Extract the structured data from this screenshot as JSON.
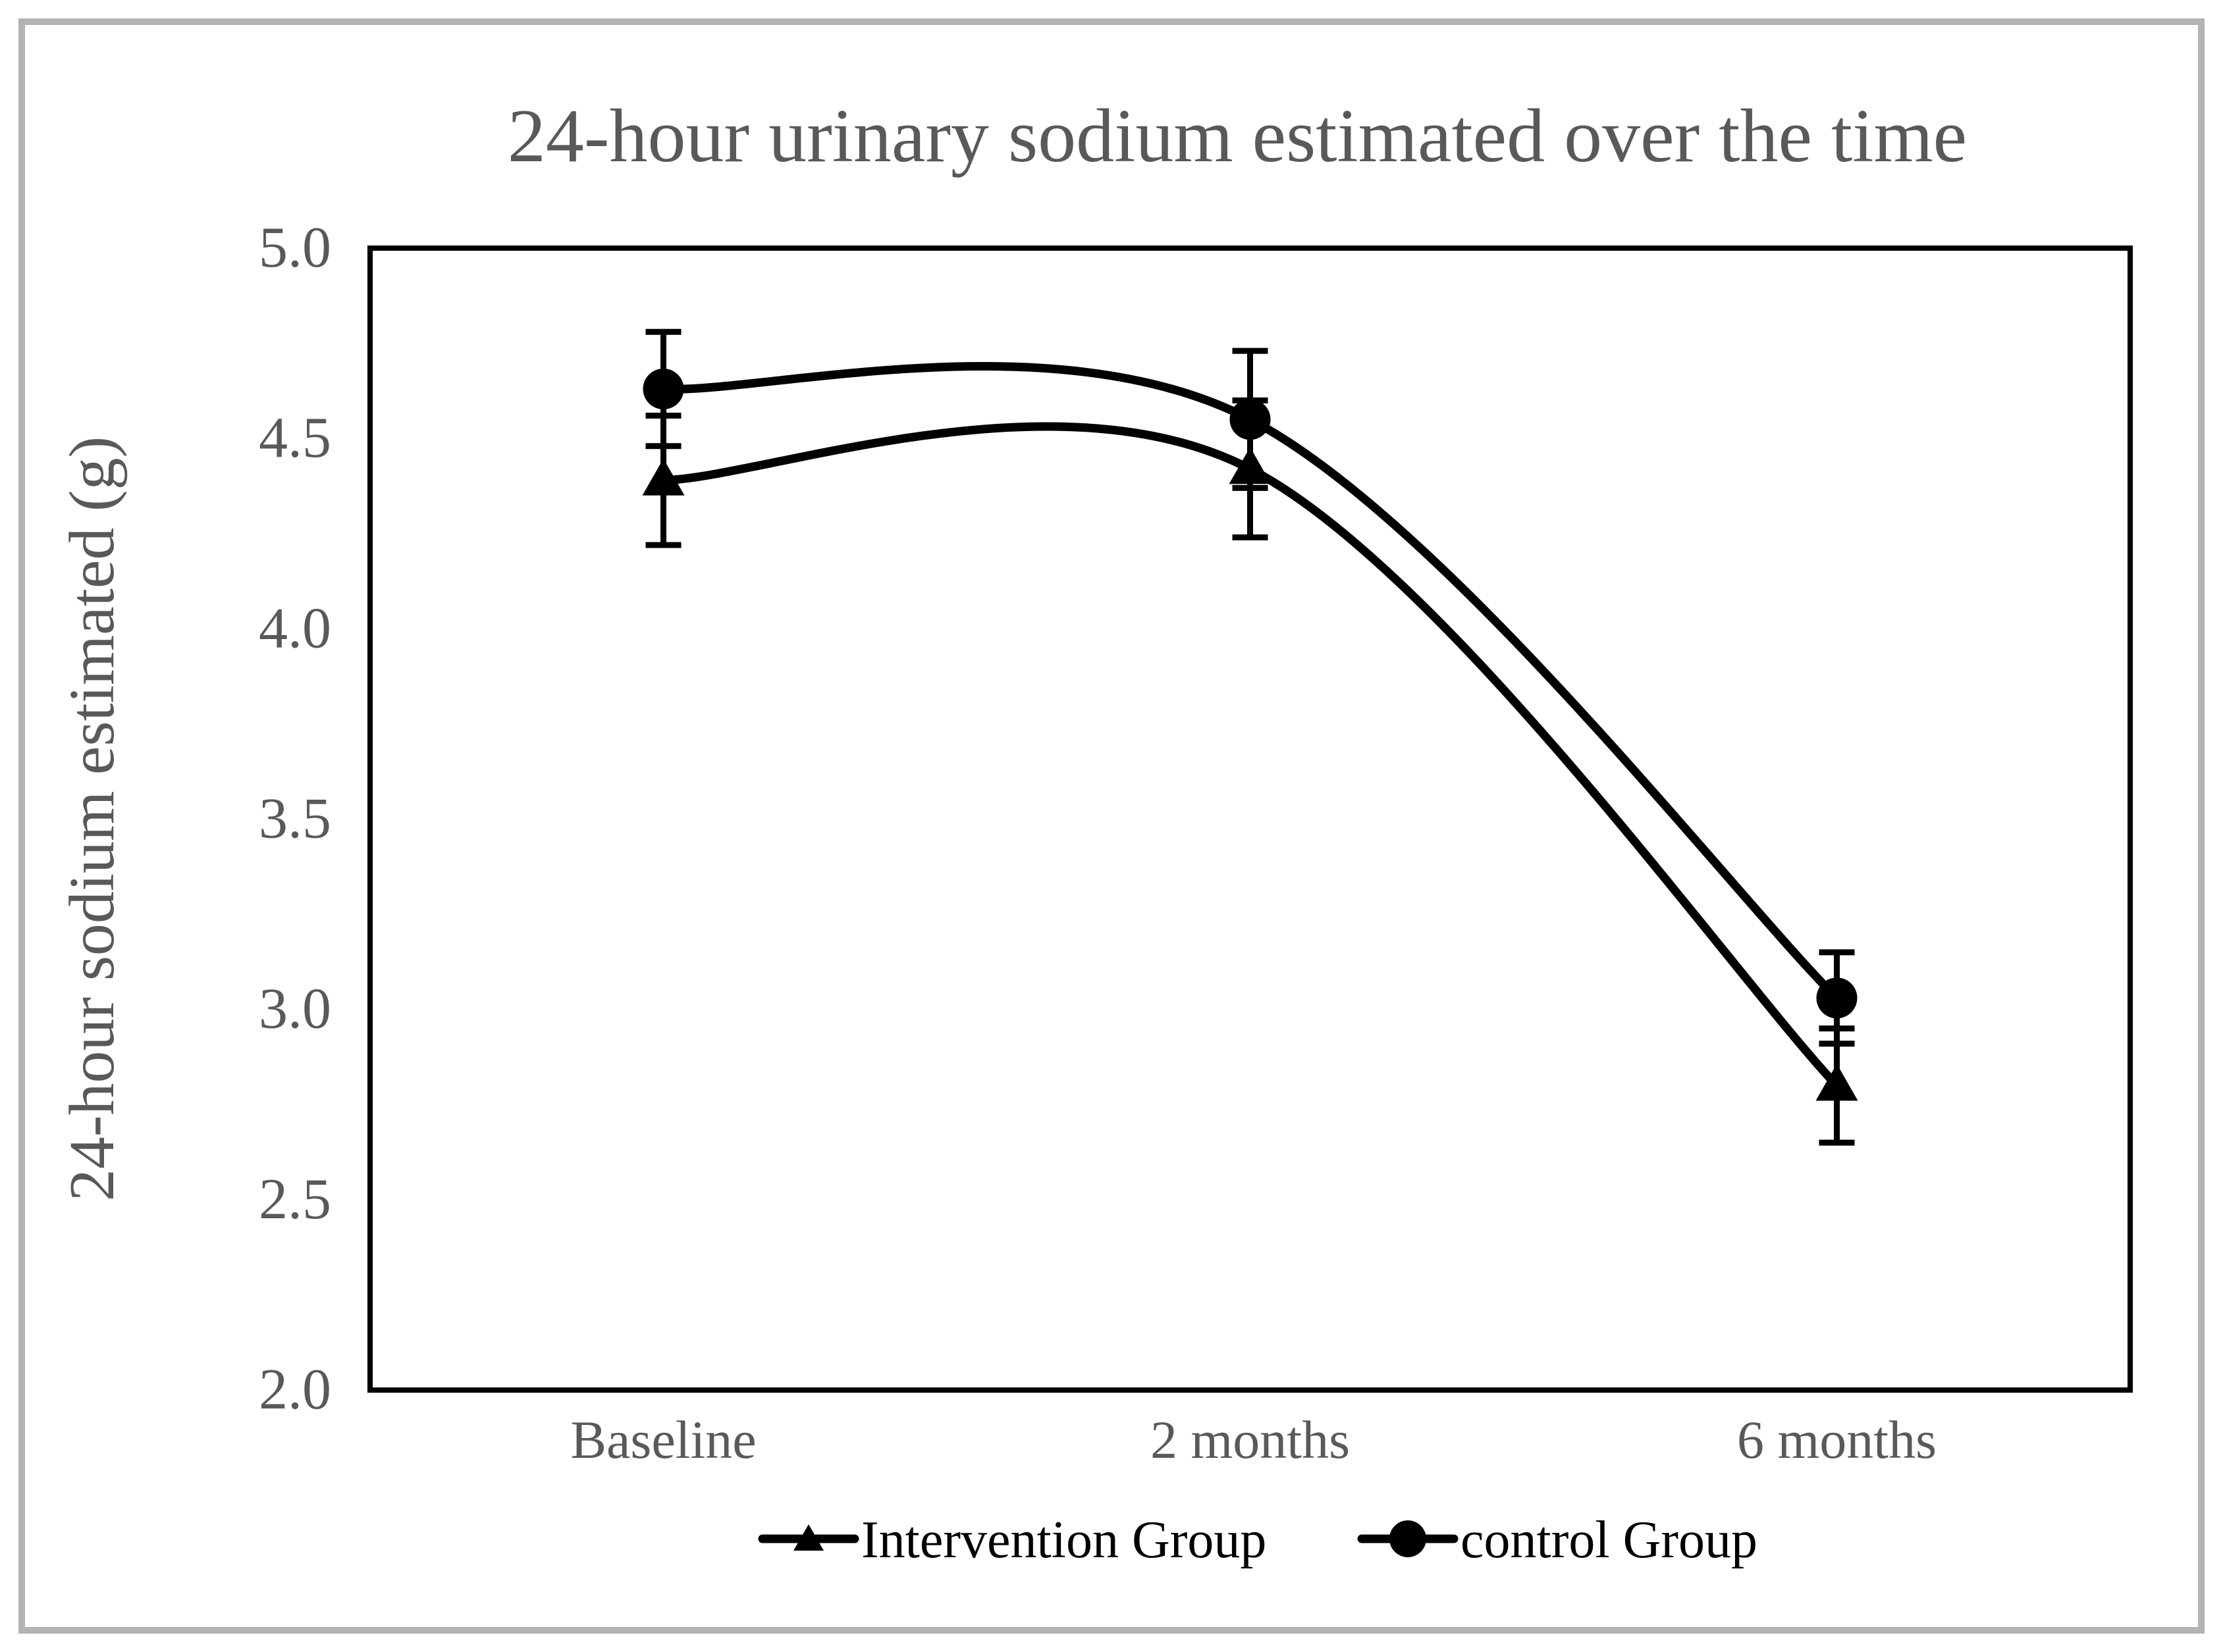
{
  "figure": {
    "background": "#ffffff",
    "outer_border_color": "#b3b3b3",
    "text_color": "#595959",
    "series_color": "#000000"
  },
  "chart_data": {
    "type": "line",
    "line_style": "smooth",
    "title": "24-hour urinary sodium estimated over the time",
    "ylabel": "24-hour sodium estimated (g)",
    "xlabel": "",
    "categories": [
      "Baseline",
      "2 months",
      "6 months"
    ],
    "series": [
      {
        "name": "Intervention Group",
        "marker": "triangle",
        "values": [
          4.39,
          4.42,
          2.8
        ],
        "error_bars": [
          0.17,
          0.18,
          0.15
        ]
      },
      {
        "name": "control Group",
        "marker": "circle",
        "values": [
          4.63,
          4.55,
          3.03
        ],
        "error_bars": [
          0.15,
          0.18,
          0.12
        ]
      }
    ],
    "ylim": [
      2.0,
      5.0
    ],
    "yticks": [
      "5.0",
      "4.5",
      "4.0",
      "3.5",
      "3.0",
      "2.5",
      "2.0"
    ],
    "grid": false,
    "legend_position": "bottom"
  }
}
